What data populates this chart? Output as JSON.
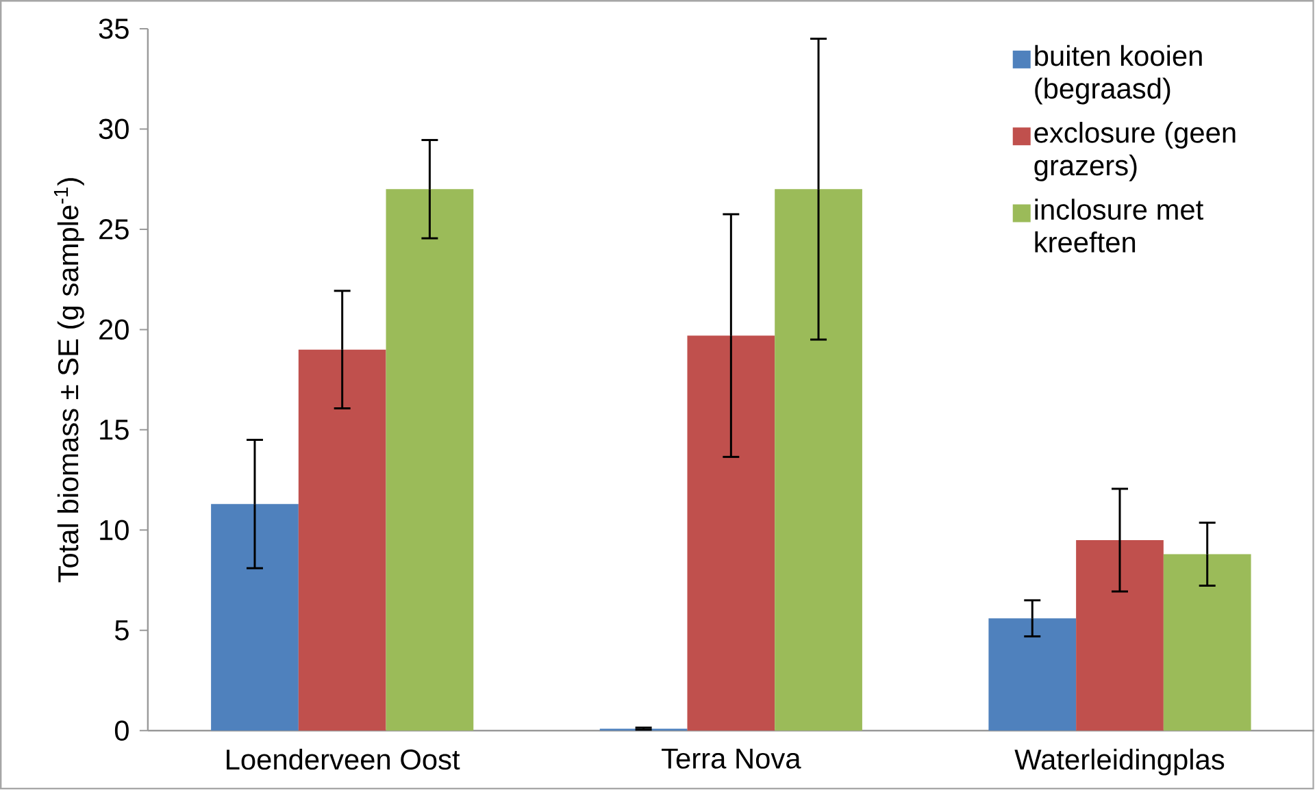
{
  "chart_data": {
    "type": "bar",
    "ylabel": "Total biomass ± SE (g sample$^{-1}$)",
    "categories": [
      "Loenderveen Oost",
      "Terra Nova",
      "Waterleidingplas"
    ],
    "series": [
      {
        "name": "buiten kooien (begraasd)",
        "color": "#4f81bd",
        "values": [
          11.3,
          0.1,
          5.6
        ],
        "errors": [
          3.2,
          0.05,
          0.9
        ]
      },
      {
        "name": "exclosure (geen grazers)",
        "color": "#c0504d",
        "values": [
          19.0,
          19.7,
          9.5
        ],
        "errors": [
          2.93,
          6.05,
          2.56
        ]
      },
      {
        "name": "inclosure met kreeften",
        "color": "#9bbb59",
        "values": [
          27.0,
          27.0,
          8.8
        ],
        "errors": [
          2.45,
          7.5,
          1.57
        ]
      }
    ],
    "ylim": [
      0,
      35
    ],
    "yticks": [
      0,
      5,
      10,
      15,
      20,
      25,
      30,
      35
    ],
    "legend": "top right"
  }
}
